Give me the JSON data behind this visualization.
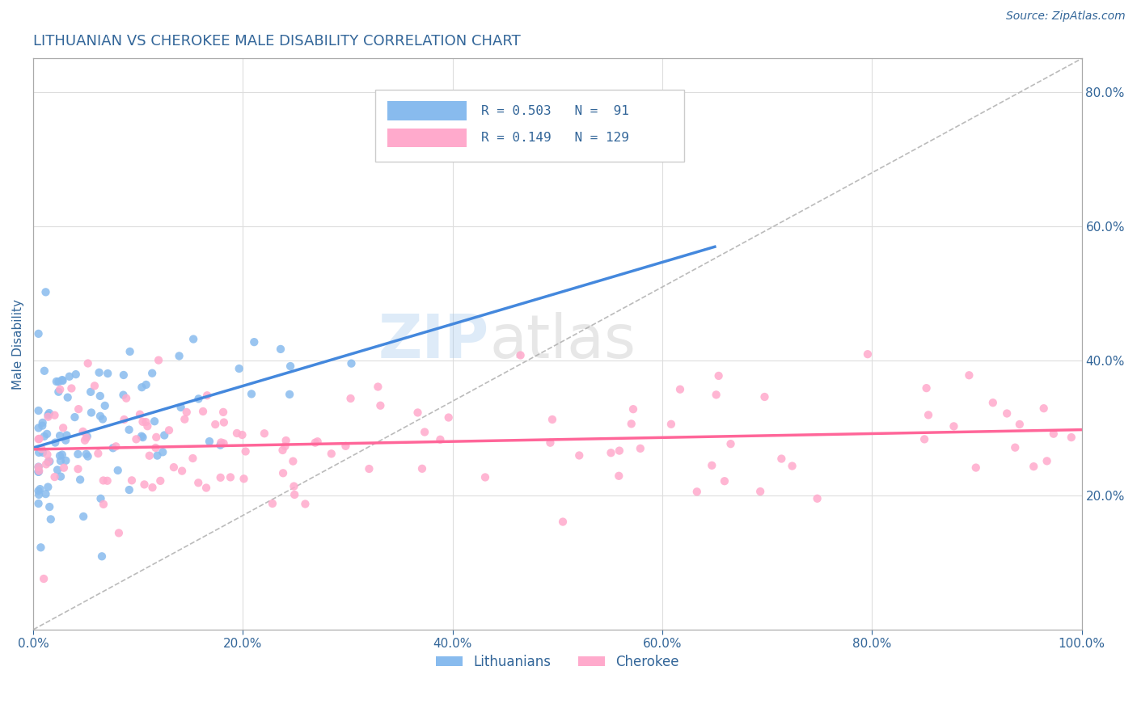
{
  "title": "LITHUANIAN VS CHEROKEE MALE DISABILITY CORRELATION CHART",
  "source": "Source: ZipAtlas.com",
  "ylabel": "Male Disability",
  "xlim": [
    0.0,
    1.0
  ],
  "ylim": [
    0.0,
    0.85
  ],
  "xticks": [
    0.0,
    0.2,
    0.4,
    0.6,
    0.8,
    1.0
  ],
  "xticklabels": [
    "0.0%",
    "20.0%",
    "40.0%",
    "60.0%",
    "80.0%",
    "100.0%"
  ],
  "yticks": [
    0.2,
    0.4,
    0.6,
    0.8
  ],
  "yticklabels": [
    "20.0%",
    "40.0%",
    "60.0%",
    "80.0%"
  ],
  "blue_color": "#88BBEE",
  "pink_color": "#FFAACC",
  "blue_line_color": "#4488DD",
  "pink_line_color": "#FF6699",
  "diag_line_color": "#BBBBBB",
  "R_blue": 0.503,
  "N_blue": 91,
  "R_pink": 0.149,
  "N_pink": 129,
  "legend_label_blue": "Lithuanians",
  "legend_label_pink": "Cherokee",
  "watermark_zip": "ZIP",
  "watermark_atlas": "atlas",
  "background_color": "#FFFFFF",
  "title_color": "#336699",
  "axis_color": "#AAAAAA"
}
